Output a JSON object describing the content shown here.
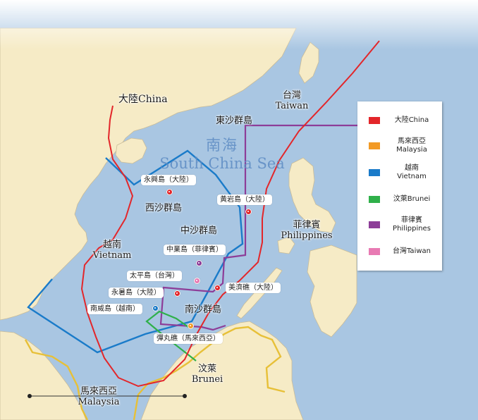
{
  "colors": {
    "sea": "#a9c6e2",
    "land": "#f6ebc6",
    "china": "#e3262a",
    "malaysia": "#f29a26",
    "vietnam": "#1a7bc9",
    "brunei": "#2fb04a",
    "philippines": "#8d3d98",
    "taiwan": "#e87ab3",
    "malaysia_border": "#e7c038"
  },
  "sea_label": {
    "zh": "南海",
    "en": "South China Sea"
  },
  "countries": {
    "china": {
      "zh": "大陸China"
    },
    "taiwan": {
      "zh": "台灣",
      "en": "Taiwan"
    },
    "vietnam": {
      "zh": "越南",
      "en": "Vietnam"
    },
    "philippines": {
      "zh": "菲律賓",
      "en": "Philippines"
    },
    "brunei": {
      "zh": "汶萊",
      "en": "Brunei"
    },
    "malaysia": {
      "zh": "馬來西亞",
      "en": "Malaysia"
    }
  },
  "island_groups": {
    "dongsha": "東沙群島",
    "xisha": "西沙群島",
    "zhongsha": "中沙群島",
    "nansha": "南沙群島"
  },
  "features": [
    {
      "label": "永興島（大陸）",
      "owner": "china"
    },
    {
      "label": "黃岩島（大陸）",
      "owner": "china"
    },
    {
      "label": "中業島（菲律賓）",
      "owner": "philippines"
    },
    {
      "label": "太平島（台灣）",
      "owner": "taiwan"
    },
    {
      "label": "永暑島（大陸）",
      "owner": "china"
    },
    {
      "label": "美濟礁（大陸）",
      "owner": "china"
    },
    {
      "label": "南威島（越南）",
      "owner": "vietnam"
    },
    {
      "label": "彈丸礁（馬來西亞）",
      "owner": "malaysia"
    }
  ],
  "legend": [
    {
      "zh": "大陸China",
      "en": "",
      "color_key": "china"
    },
    {
      "zh": "馬來西亞",
      "en": "Malaysia",
      "color_key": "malaysia"
    },
    {
      "zh": "越南",
      "en": "Vietnam",
      "color_key": "vietnam"
    },
    {
      "zh": "汶萊Brunei",
      "en": "",
      "color_key": "brunei"
    },
    {
      "zh": "菲律賓",
      "en": "Philippines",
      "color_key": "philippines"
    },
    {
      "zh": "台灣Taiwan",
      "en": "",
      "color_key": "taiwan"
    }
  ]
}
